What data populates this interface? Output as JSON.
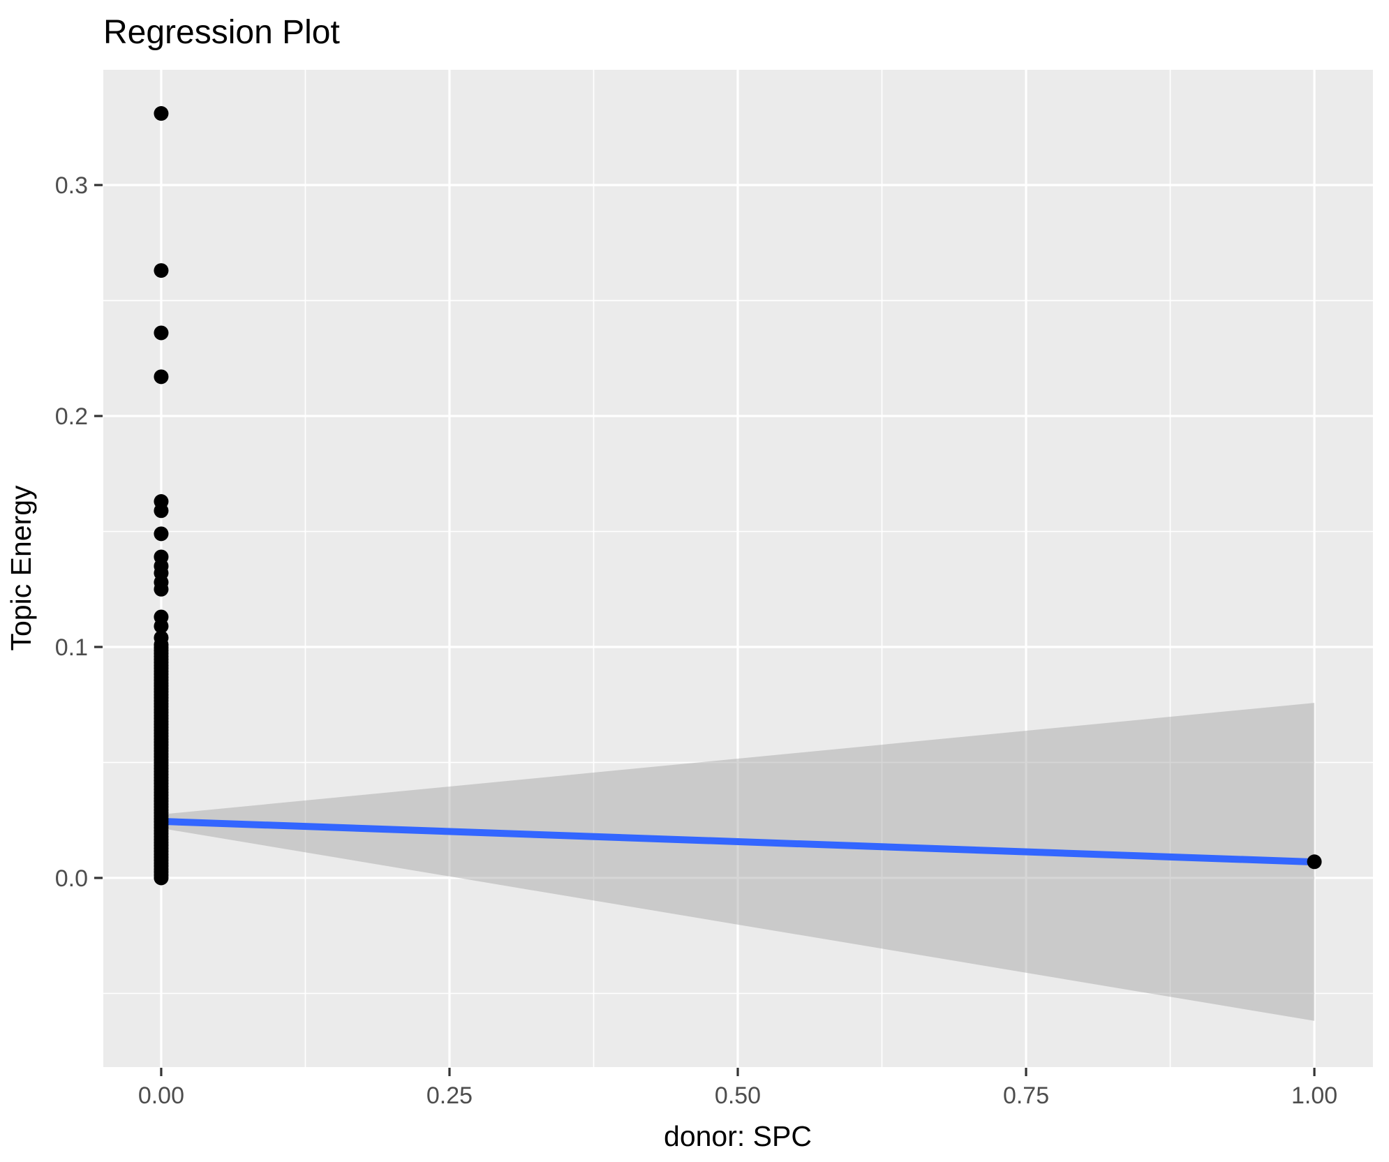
{
  "figure": {
    "title": "Regression Plot",
    "background": "#FFFFFF"
  },
  "chart_data": {
    "type": "scatter",
    "title": "Regression Plot",
    "xlabel": "donor: SPC",
    "ylabel": "Topic Energy",
    "xlim": [
      -0.0502,
      1.0508
    ],
    "ylim": [
      -0.0819,
      0.3499
    ],
    "grid": true,
    "legend_position": "none",
    "x_ticks": {
      "values": [
        0.0,
        0.25,
        0.5,
        0.75,
        1.0
      ],
      "labels": [
        "0.00",
        "0.25",
        "0.50",
        "0.75",
        "1.00"
      ]
    },
    "y_ticks": {
      "values": [
        0.0,
        0.1,
        0.2,
        0.3
      ],
      "labels": [
        "0.0",
        "0.1",
        "0.2",
        "0.3"
      ]
    },
    "x_minor_ticks": [
      0.125,
      0.375,
      0.625,
      0.875
    ],
    "y_minor_ticks": [
      -0.05,
      0.05,
      0.15,
      0.25,
      0.35
    ],
    "points": {
      "discrete": [
        {
          "x": 0,
          "y": 0.331
        },
        {
          "x": 0,
          "y": 0.263
        },
        {
          "x": 0,
          "y": 0.236
        },
        {
          "x": 0,
          "y": 0.217
        },
        {
          "x": 0,
          "y": 0.163
        },
        {
          "x": 0,
          "y": 0.159
        },
        {
          "x": 0,
          "y": 0.149
        },
        {
          "x": 0,
          "y": 0.139
        },
        {
          "x": 0,
          "y": 0.135
        },
        {
          "x": 0,
          "y": 0.132
        },
        {
          "x": 0,
          "y": 0.128
        },
        {
          "x": 0,
          "y": 0.125
        },
        {
          "x": 0,
          "y": 0.113
        },
        {
          "x": 0,
          "y": 0.109
        },
        {
          "x": 0,
          "y": 0.104
        },
        {
          "x": 1,
          "y": 0.007
        }
      ],
      "dense_column": {
        "x": 0,
        "y_from": 0.0,
        "y_to": 0.101,
        "count": 80
      }
    },
    "regression_line": {
      "x": [
        0,
        1
      ],
      "y": [
        0.0245,
        0.0069
      ]
    },
    "confidence_band": {
      "x": [
        0,
        1
      ],
      "upper": [
        0.0275,
        0.0758
      ],
      "lower": [
        0.0215,
        -0.0619
      ]
    },
    "colors": {
      "panel_bg": "#EBEBEB",
      "grid": "#FFFFFF",
      "point": "#000000",
      "line": "#3366FF",
      "band": "#999999",
      "band_opacity": "0.4",
      "tick_label": "#4D4D4D",
      "tick_mark": "#333333",
      "text": "#000000"
    }
  }
}
